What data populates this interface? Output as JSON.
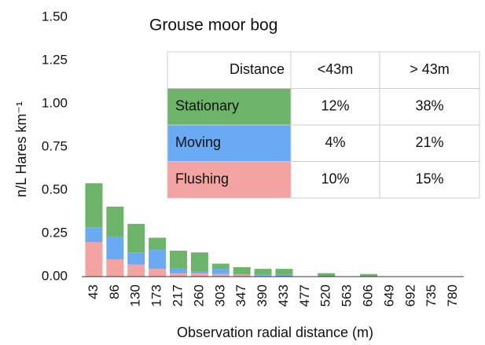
{
  "chart_data": {
    "type": "stacked_bar",
    "title": "Grouse moor bog",
    "x_label": "Observation radial distance (m)",
    "y_label": "n/L Hares km⁻¹",
    "categories": [
      "43",
      "86",
      "130",
      "173",
      "217",
      "260",
      "303",
      "347",
      "390",
      "433",
      "477",
      "520",
      "563",
      "606",
      "649",
      "692",
      "735",
      "780"
    ],
    "series": [
      {
        "name": "Stationary",
        "color": "#6db36a",
        "values": [
          0.255,
          0.175,
          0.165,
          0.07,
          0.1,
          0.11,
          0.03,
          0.04,
          0.035,
          0.035,
          0,
          0.02,
          0,
          0.015,
          0,
          0,
          0,
          0
        ]
      },
      {
        "name": "Moving",
        "color": "#6aaaf2",
        "values": [
          0.085,
          0.13,
          0.07,
          0.11,
          0.03,
          0.01,
          0.03,
          0.005,
          0.005,
          0.01,
          0,
          0,
          0,
          0,
          0,
          0,
          0,
          0
        ]
      },
      {
        "name": "Flushing",
        "color": "#f4a3a3",
        "values": [
          0.2,
          0.1,
          0.07,
          0.045,
          0.02,
          0.02,
          0.015,
          0.01,
          0.005,
          0,
          0,
          0,
          0,
          0,
          0,
          0,
          0,
          0
        ]
      }
    ],
    "ylim": [
      0,
      1.5
    ],
    "yticks": [
      {
        "value": 0,
        "label": "0.00"
      },
      {
        "value": 0.25,
        "label": "0.25"
      },
      {
        "value": 0.5,
        "label": "0.50"
      },
      {
        "value": 0.75,
        "label": "0.75"
      },
      {
        "value": 1,
        "label": "1.00"
      },
      {
        "value": 1.25,
        "label": "1.25"
      },
      {
        "value": 1.5,
        "label": "1.50"
      }
    ],
    "grid": false
  },
  "table": {
    "header": [
      "Distance",
      "<43m",
      "> 43m"
    ],
    "rows": [
      [
        "12%",
        "38%"
      ],
      [
        "4%",
        "21%"
      ],
      [
        "10%",
        "15%"
      ]
    ]
  }
}
